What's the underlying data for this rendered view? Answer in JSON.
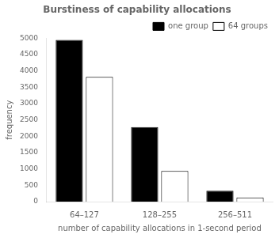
{
  "chart_data": {
    "type": "bar",
    "title": "Burstiness of capability allocations",
    "xlabel": "number of capability allocations in 1-second period",
    "ylabel": "frequency",
    "categories": [
      "64–127",
      "128–255",
      "256–511"
    ],
    "series": [
      {
        "name": "one group",
        "color": "#000000",
        "values": [
          4950,
          2280,
          330
        ]
      },
      {
        "name": "64 groups",
        "color": "#ffffff",
        "values": [
          3820,
          940,
          130
        ]
      }
    ],
    "ylim": [
      0,
      5000
    ],
    "yticks": [
      0,
      500,
      1000,
      1500,
      2000,
      2500,
      3000,
      3500,
      4000,
      4500,
      5000
    ],
    "grid": false,
    "legend": "upper right"
  }
}
